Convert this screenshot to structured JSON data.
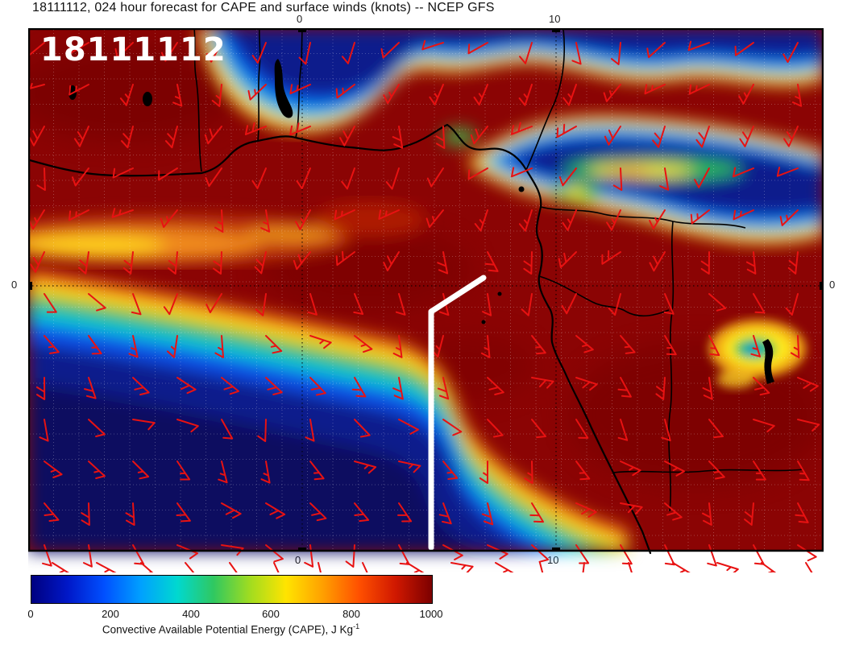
{
  "title": "18111112, 024 hour forecast for CAPE and surface winds (knots) -- NCEP GFS",
  "map": {
    "timestamp_label": "18111112"
  },
  "axes": {
    "top": [
      "0",
      "10"
    ],
    "bottom": [
      "0",
      "10"
    ],
    "left": [
      "0"
    ],
    "right": [
      "0"
    ]
  },
  "colorbar": {
    "ticks": [
      "0",
      "200",
      "400",
      "600",
      "800",
      "1000"
    ],
    "label": "Convective Available Potential Energy (CAPE), J Kg",
    "label_sup": "-1",
    "palette": [
      "#000080",
      "#0018c8",
      "#0050ff",
      "#00a0ff",
      "#00d8d0",
      "#30c860",
      "#a0dc20",
      "#ffe400",
      "#ffa000",
      "#ff5000",
      "#d01800",
      "#7c0000"
    ]
  },
  "chart_data": {
    "type": "heatmap",
    "title": "18111112, 024 hour forecast for CAPE and surface winds (knots) -- NCEP GFS",
    "variable": "Convective Available Potential Energy (CAPE)",
    "units": "J Kg-1",
    "model": "NCEP GFS",
    "init_time": "18111112",
    "forecast_hour": "024",
    "scale": {
      "min": 0,
      "max": 1000,
      "ticks": [
        0,
        200,
        400,
        600,
        800,
        1000
      ]
    },
    "axis_ticks": {
      "longitude": [
        0,
        10
      ],
      "latitude": [
        0
      ]
    },
    "overlays": [
      "surface wind barbs in knots (red)",
      "thick white flight-track segment near 0 lat / 5E",
      "coastlines, lakes and country borders (black)",
      "dotted graticule at 0 and 10 deg"
    ],
    "wind_barbs": {
      "color": "#e81212",
      "units": "knots"
    },
    "regions": [
      {
        "area": "Sahel band along the northern map edge",
        "cape": "< 200"
      },
      {
        "area": "West African coast, Gulf of Guinea and equatorial Atlantic ITCZ",
        "cape": "> 1000"
      },
      {
        "area": "broad band east of 10E near 3-7N (Nigeria/Chad/CAR)",
        "cape": "100-600 with embedded 400-700 streak"
      },
      {
        "area": "southeast Atlantic south of the diagonal gradient (SW quadrant)",
        "cape": "< 200"
      },
      {
        "area": "diagonal transition band from (10W,0) toward (8E,8S)",
        "cape": "200-900 rainbow gradient"
      },
      {
        "area": "Congo basin and central/southern interior",
        "cape": "> 1000"
      },
      {
        "area": "isolated low-CAPE spot near 18E, 2.5S (east highlands)",
        "cape": "200-700"
      },
      {
        "area": "coastal Angola/Benguela strip at bottom",
        "cape": "< 300"
      }
    ]
  }
}
